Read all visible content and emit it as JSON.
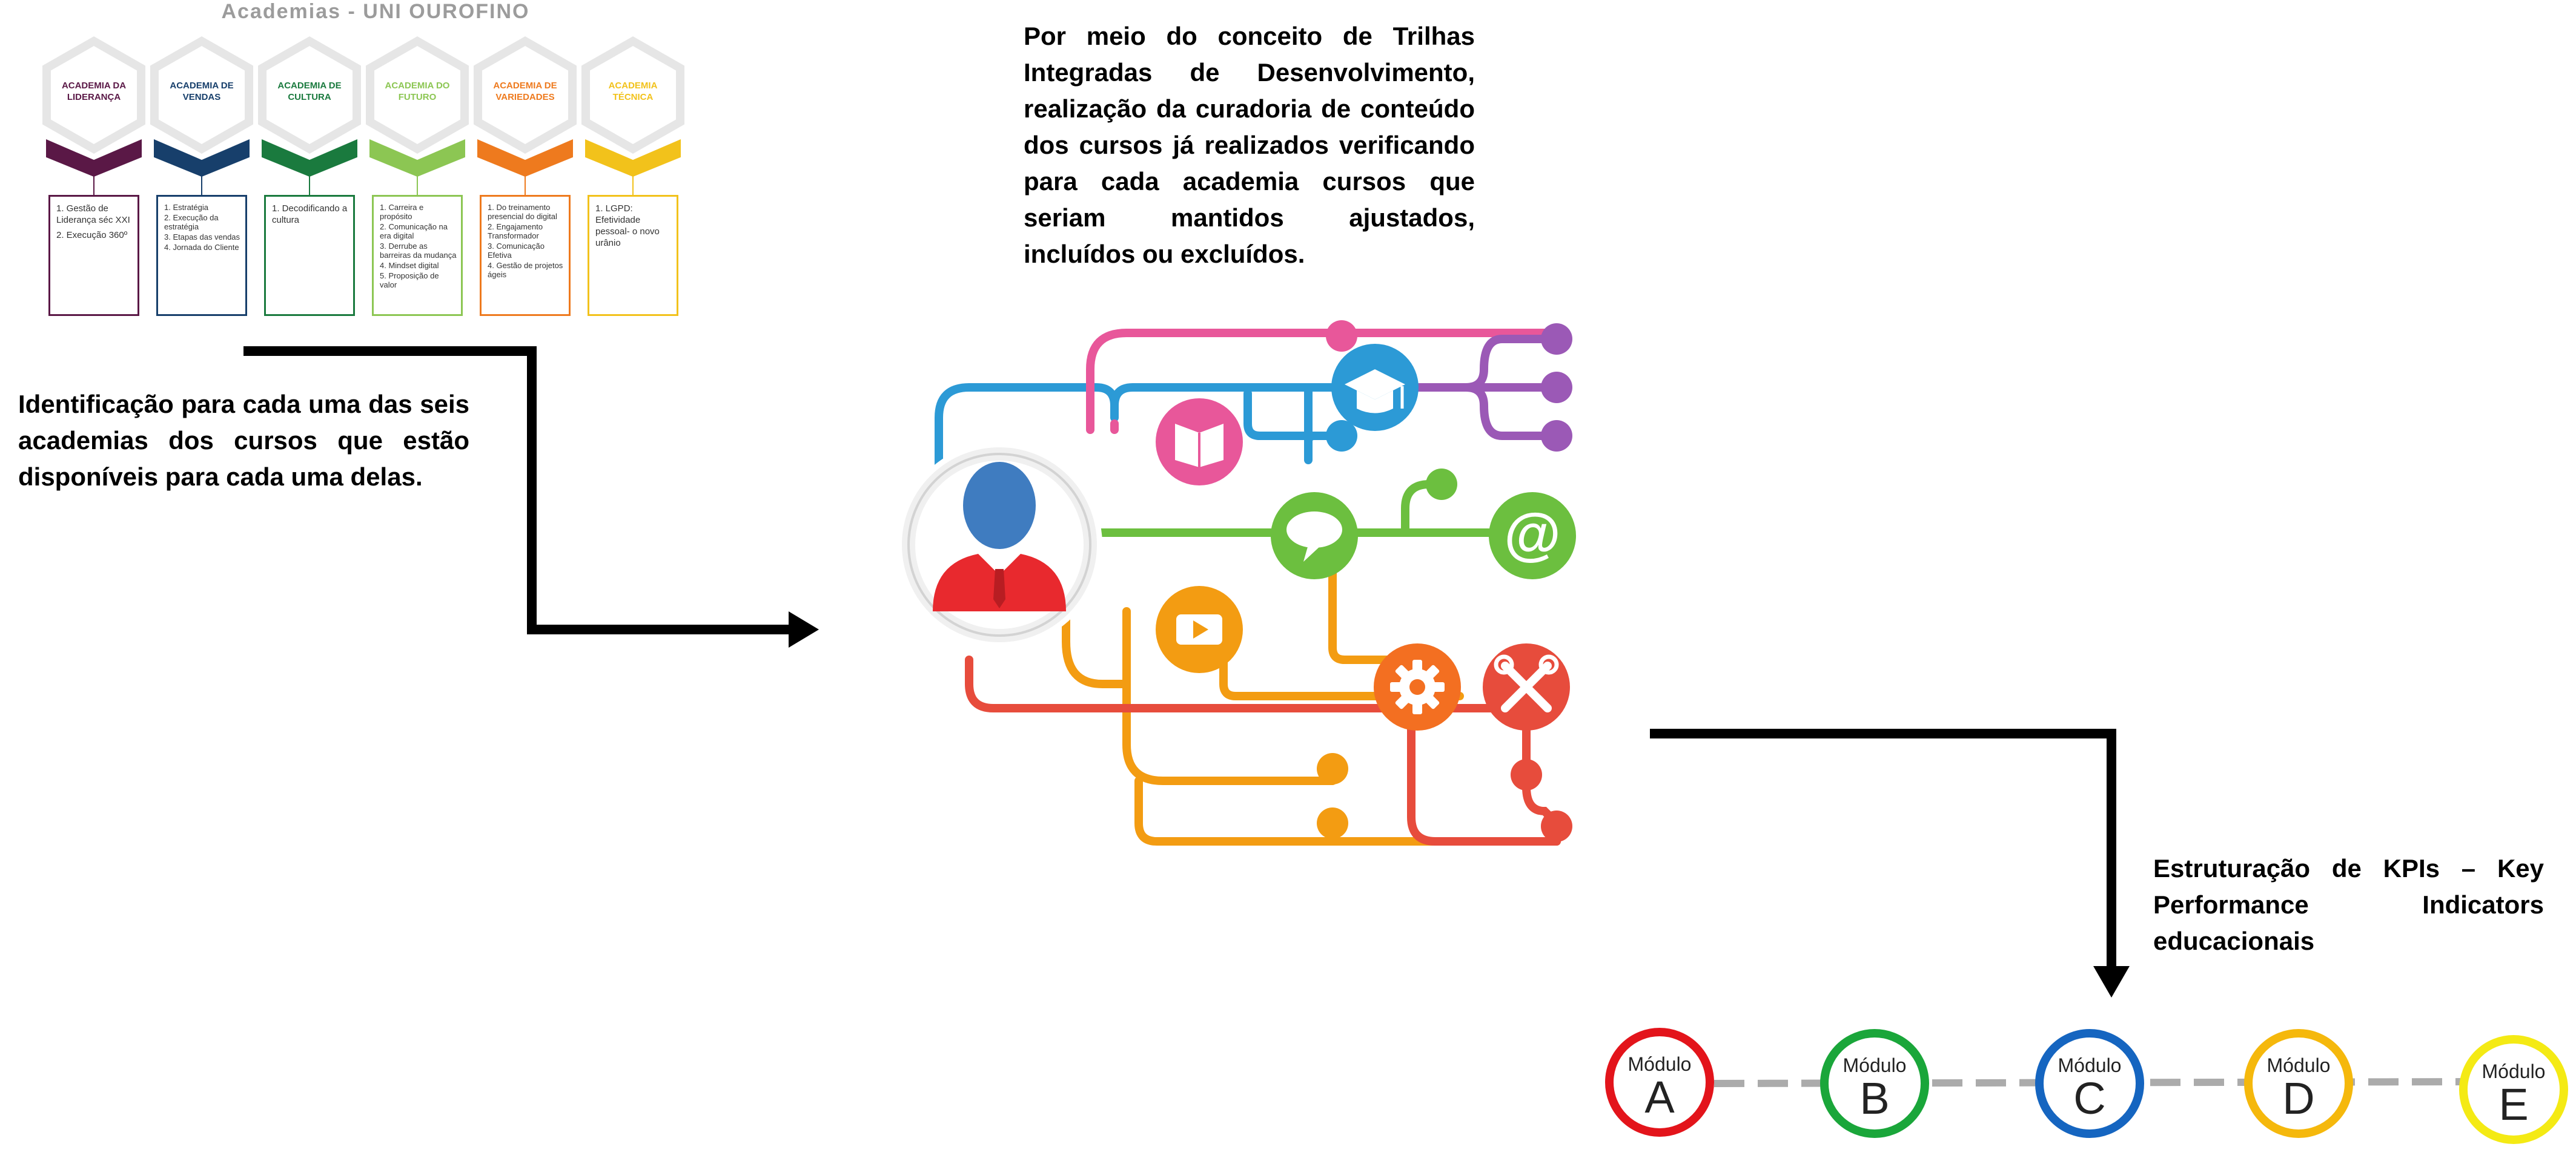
{
  "academies_title": "Academias - UNI OUROFINO",
  "academies": [
    {
      "name": "ACADEMIA DA\nLIDERANÇA",
      "color": "#5a1846",
      "courses": [
        "1. Gestão de Liderança séc XXI",
        "2. Execução 360º"
      ]
    },
    {
      "name": "ACADEMIA DE\nVENDAS",
      "color": "#173f6b",
      "courses": [
        "1. Estratégia",
        "2. Execução da estratégia",
        "3. Etapas das vendas",
        "4. Jornada do Cliente"
      ]
    },
    {
      "name": "ACADEMIA DE\nCULTURA",
      "color": "#1a7a3e",
      "courses": [
        "1. Decodificando a cultura"
      ]
    },
    {
      "name": "ACADEMIA DO\nFUTURO",
      "color": "#8cc653",
      "courses": [
        "1. Carreira e propósito",
        "2. Comunicação na era digital",
        "3. Derrube as barreiras da mudança",
        "4. Mindset digital",
        "5. Proposição de valor"
      ]
    },
    {
      "name": "ACADEMIA DE\nVARIEDADES",
      "color": "#ee7a1e",
      "courses": [
        "1. Do treinamento presencial do digital",
        "2. Engajamento Transformador",
        "3. Comunicação Efetiva",
        "4. Gestão de projetos ágeis"
      ]
    },
    {
      "name": "ACADEMIA\nTÉCNICA",
      "color": "#f2c21b",
      "courses": [
        "1. LGPD: Efetividade pessoal- o novo urânio"
      ]
    }
  ],
  "left_text": "Identificação para cada uma das seis academias dos cursos que estão disponíveis para cada uma delas.",
  "top_text": "Por meio do conceito de Trilhas Integradas de Desenvolvimento, realização da curadoria de conteúdo dos cursos já realizados verificando para cada academia cursos que seriam mantidos ajustados, incluídos ou excluídos.",
  "kpi_text": "Estruturação de KPIs – Key Performance Indicators educacionais",
  "modules": [
    {
      "label": "Módulo",
      "letter": "A",
      "color": "#e3141b"
    },
    {
      "label": "Módulo",
      "letter": "B",
      "color": "#1aa63a"
    },
    {
      "label": "Módulo",
      "letter": "C",
      "color": "#1565c0"
    },
    {
      "label": "Módulo",
      "letter": "D",
      "color": "#f5b80c"
    },
    {
      "label": "Módulo",
      "letter": "E",
      "color": "#f4ea14"
    }
  ],
  "illustration_icons": [
    "user-icon",
    "book-icon",
    "graduation-cap-icon",
    "chat-bubble-icon",
    "at-sign-icon",
    "play-icon",
    "gear-icon",
    "tools-icon"
  ]
}
